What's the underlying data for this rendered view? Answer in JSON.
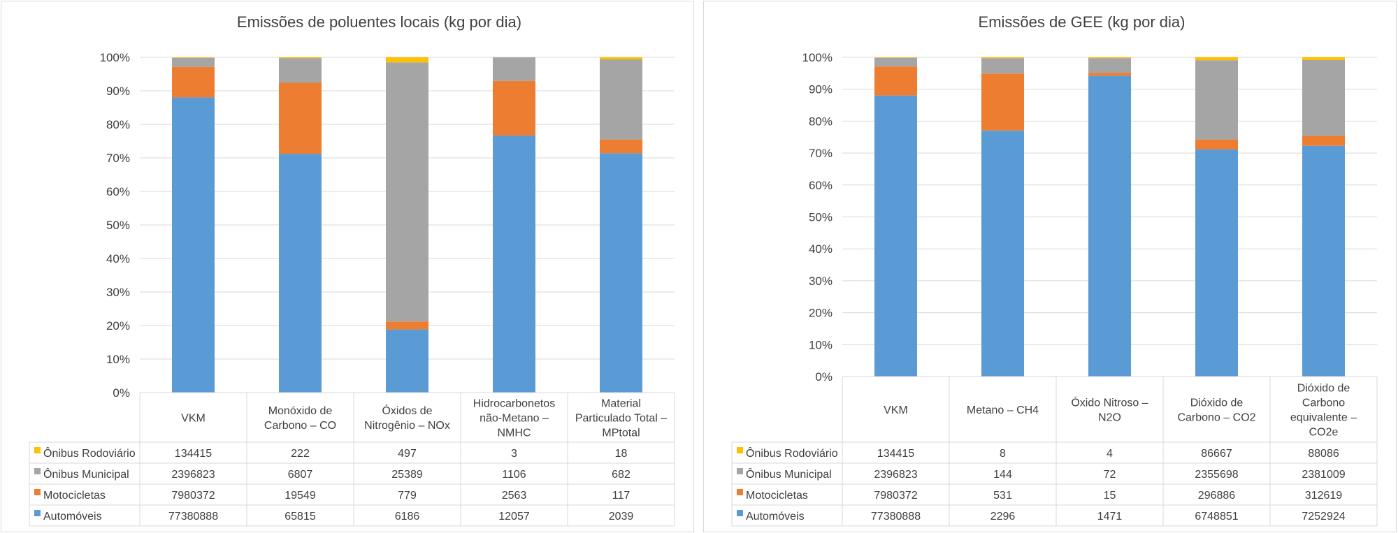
{
  "chart_data": [
    {
      "type": "stacked-bar-100",
      "title": "Emissões de poluentes locais (kg por dia)",
      "categories": [
        "VKM",
        "Monóxido de Carbono – CO",
        "Óxidos de Nitrogênio – NOx",
        "Hidrocarbonetos não-Metano – NMHC",
        "Material Particulado Total – MPtotal"
      ],
      "category_lines": [
        [
          "VKM"
        ],
        [
          "Monóxido de",
          "Carbono – CO"
        ],
        [
          "Óxidos de",
          "Nitrogênio – NOx"
        ],
        [
          "Hidrocarbonetos",
          "não-Metano –",
          "NMHC"
        ],
        [
          "Material",
          "Particulado Total –",
          "MPtotal"
        ]
      ],
      "y_ticks": [
        "0%",
        "10%",
        "20%",
        "30%",
        "40%",
        "50%",
        "60%",
        "70%",
        "80%",
        "90%",
        "100%"
      ],
      "ylim": [
        0,
        100
      ],
      "grid": true,
      "legend": "data-table",
      "series": [
        {
          "name": "Automóveis",
          "color": "#5b9bd5",
          "values": [
            77380888,
            65815,
            6186,
            12057,
            2039
          ]
        },
        {
          "name": "Motocicletas",
          "color": "#ed7d31",
          "values": [
            7980372,
            19549,
            779,
            2563,
            117
          ]
        },
        {
          "name": "Ônibus Municipal",
          "color": "#a5a5a5",
          "values": [
            2396823,
            6807,
            25389,
            1106,
            682
          ]
        },
        {
          "name": "Ônibus Rodoviário",
          "color": "#ffc000",
          "values": [
            134415,
            222,
            497,
            3,
            18
          ]
        }
      ]
    },
    {
      "type": "stacked-bar-100",
      "title": "Emissões de GEE (kg por dia)",
      "categories": [
        "VKM",
        "Metano – CH4",
        "Óxido Nitroso – N2O",
        "Dióxido de Carbono – CO2",
        "Dióxido de Carbono equivalente – CO2e"
      ],
      "category_lines": [
        [
          "VKM"
        ],
        [
          "Metano – CH4"
        ],
        [
          "Óxido Nitroso –",
          "N2O"
        ],
        [
          "Dióxido de",
          "Carbono – CO2"
        ],
        [
          "Dióxido de",
          "Carbono",
          "equivalente –",
          "CO2e"
        ]
      ],
      "y_ticks": [
        "0%",
        "10%",
        "20%",
        "30%",
        "40%",
        "50%",
        "60%",
        "70%",
        "80%",
        "90%",
        "100%"
      ],
      "ylim": [
        0,
        100
      ],
      "grid": true,
      "legend": "data-table",
      "series": [
        {
          "name": "Automóveis",
          "color": "#5b9bd5",
          "values": [
            77380888,
            2296,
            1471,
            6748851,
            7252924
          ]
        },
        {
          "name": "Motocicletas",
          "color": "#ed7d31",
          "values": [
            7980372,
            531,
            15,
            296886,
            312619
          ]
        },
        {
          "name": "Ônibus Municipal",
          "color": "#a5a5a5",
          "values": [
            2396823,
            144,
            72,
            2355698,
            2381009
          ]
        },
        {
          "name": "Ônibus Rodoviário",
          "color": "#ffc000",
          "values": [
            134415,
            8,
            4,
            86667,
            88086
          ]
        }
      ]
    }
  ]
}
